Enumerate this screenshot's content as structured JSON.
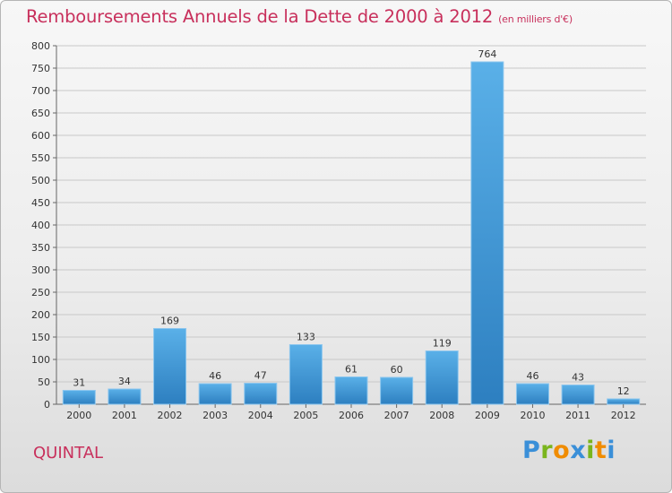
{
  "title": "Remboursements Annuels de la Dette de 2000 à 2012",
  "subtitle": "(en milliers d'€)",
  "commune": "QUINTAL",
  "logo": {
    "text": "Proxiti",
    "letters": [
      "P",
      "r",
      "o",
      "x",
      "i",
      "t",
      "i"
    ],
    "colors": [
      "#3a8fd8",
      "#7ab51d",
      "#f08c00",
      "#3a8fd8",
      "#7ab51d",
      "#f08c00",
      "#3a8fd8"
    ]
  },
  "colors": {
    "title": "#c8305c",
    "bar_top": "#5ab0e8",
    "bar_bottom": "#2d7fc0",
    "grid": "#c8c8c8"
  },
  "chart_data": {
    "type": "bar",
    "title": "Remboursements Annuels de la Dette de 2000 à 2012",
    "ylabel": "(en milliers d'€)",
    "xlabel": "",
    "categories": [
      "2000",
      "2001",
      "2002",
      "2003",
      "2004",
      "2005",
      "2006",
      "2007",
      "2008",
      "2009",
      "2010",
      "2011",
      "2012"
    ],
    "values": [
      31,
      34,
      169,
      46,
      47,
      133,
      61,
      60,
      119,
      764,
      46,
      43,
      12
    ],
    "ylim": [
      0,
      800
    ],
    "yticks": [
      0,
      50,
      100,
      150,
      200,
      250,
      300,
      350,
      400,
      450,
      500,
      550,
      600,
      650,
      700,
      750,
      800
    ],
    "grid": true,
    "legend": "none"
  }
}
